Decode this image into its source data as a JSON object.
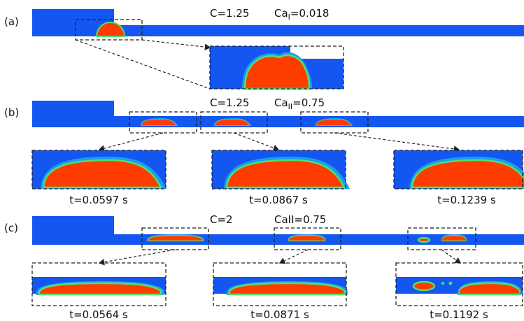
{
  "panels": [
    {
      "label": "(a)",
      "params": [
        {
          "text": "C=1.25"
        },
        {
          "base": "Ca",
          "sub": "I",
          "rest": "=0.018"
        }
      ],
      "times": []
    },
    {
      "label": "(b)",
      "params": [
        {
          "text": "C=1.25"
        },
        {
          "base": "Ca",
          "sub": "II",
          "rest": "=0.75"
        }
      ],
      "times": [
        "t=0.0597 s",
        "t=0.0867 s",
        "t=0.1239 s"
      ]
    },
    {
      "label": "(c)",
      "params": [
        {
          "text": "C=2"
        },
        {
          "text": "CaII=0.75"
        }
      ],
      "times": [
        "t=0.0564 s",
        "t=0.0871 s",
        "t=0.1192 s"
      ]
    }
  ]
}
